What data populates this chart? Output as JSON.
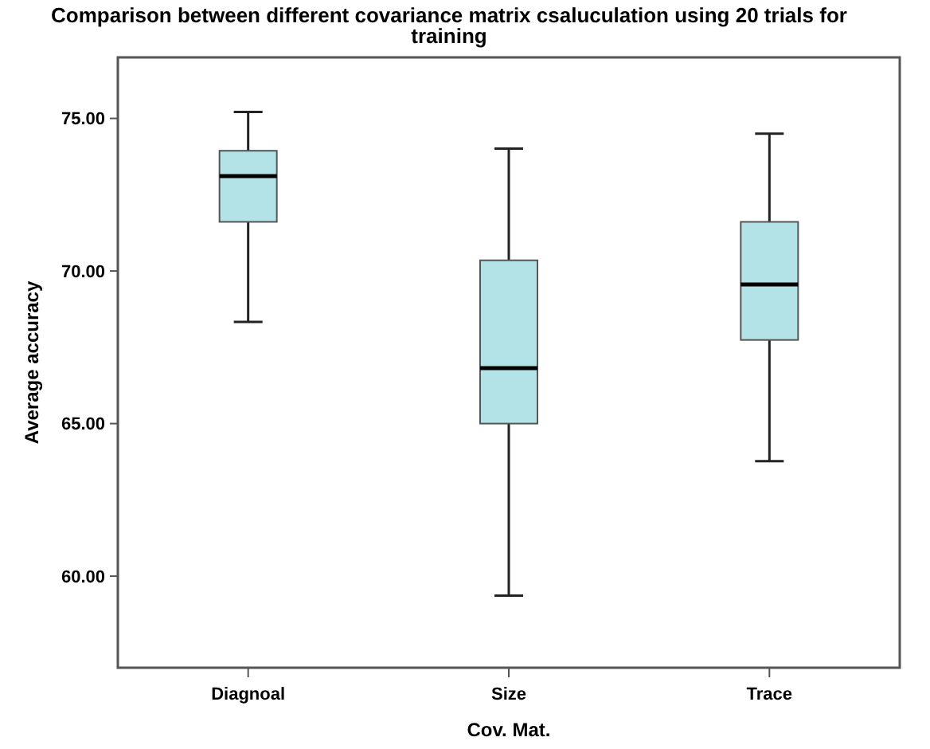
{
  "chart_data": {
    "type": "box",
    "title": "Comparison between different covariance matrix csaluculation using 20 trials for training",
    "xlabel": "Cov. Mat.",
    "ylabel": "Average accuracy",
    "categories": [
      "Diagnoal",
      "Size",
      "Trace"
    ],
    "color": "#b3e3e6",
    "boxes": [
      {
        "low": 68.33,
        "q1": 71.61,
        "median": 73.11,
        "q3": 73.94,
        "high": 75.21
      },
      {
        "low": 59.36,
        "q1": 65.0,
        "median": 66.82,
        "q3": 70.35,
        "high": 74.01
      },
      {
        "low": 63.77,
        "q1": 67.74,
        "median": 69.56,
        "q3": 71.61,
        "high": 74.5
      }
    ],
    "ylim": [
      57,
      77
    ],
    "yticks": [
      {
        "value": 60,
        "label": "60.00"
      },
      {
        "value": 65,
        "label": "65.00"
      },
      {
        "value": 70,
        "label": "70.00"
      },
      {
        "value": 75,
        "label": "75.00"
      }
    ],
    "grid": false
  }
}
